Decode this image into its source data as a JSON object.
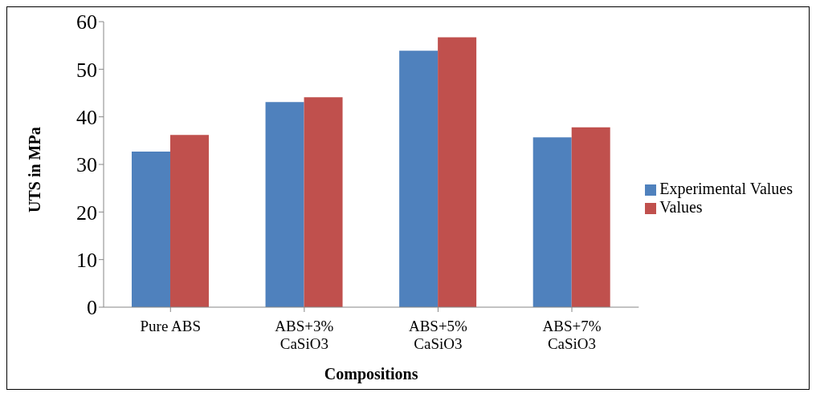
{
  "chart_data": {
    "type": "bar",
    "categories": [
      "Pure ABS",
      "ABS+3%\nCaSiO3",
      "ABS+5%\nCaSiO3",
      "ABS+7%\nCaSiO3"
    ],
    "series": [
      {
        "name": "Experimental Values",
        "color": "#4f81bd",
        "values": [
          32.7,
          43.1,
          53.9,
          35.7
        ]
      },
      {
        "name": "Values",
        "color": "#c0504d",
        "values": [
          36.2,
          44.1,
          56.7,
          37.8
        ]
      }
    ],
    "xlabel": "Compositions",
    "ylabel": "UTS in MPa",
    "ylim": [
      0,
      60
    ],
    "yticks": [
      0,
      10,
      20,
      30,
      40,
      50,
      60
    ],
    "grid": false,
    "legend": "right"
  }
}
